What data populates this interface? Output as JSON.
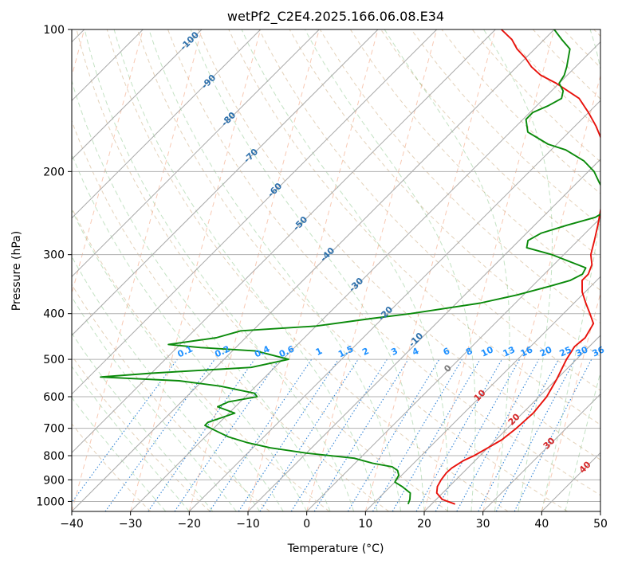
{
  "chart_data": {
    "type": "line",
    "title": "wetPf2_C2E4.2025.166.06.08.E34",
    "xlabel": "Temperature (°C)",
    "ylabel": "Pressure (hPa)",
    "xlim": [
      -40,
      50
    ],
    "ylim": [
      1050,
      100
    ],
    "y_scale": "log",
    "x_ticks": [
      -40,
      -30,
      -20,
      -10,
      0,
      10,
      20,
      30,
      40,
      50
    ],
    "y_ticks": [
      100,
      200,
      300,
      400,
      500,
      600,
      700,
      800,
      900,
      1000
    ],
    "skew": true,
    "grid": true,
    "series": [
      {
        "color": "#e8120c",
        "points": [
          [
            1013,
            24
          ],
          [
            990,
            21
          ],
          [
            960,
            19
          ],
          [
            930,
            18
          ],
          [
            900,
            17.5
          ],
          [
            870,
            17.2
          ],
          [
            850,
            17.3
          ],
          [
            820,
            18
          ],
          [
            800,
            19
          ],
          [
            770,
            20
          ],
          [
            740,
            21
          ],
          [
            700,
            21.5
          ],
          [
            650,
            21.8
          ],
          [
            600,
            21.3
          ],
          [
            550,
            20
          ],
          [
            500,
            18.3
          ],
          [
            470,
            17.5
          ],
          [
            450,
            17.8
          ],
          [
            420,
            16.8
          ],
          [
            400,
            14.5
          ],
          [
            380,
            12
          ],
          [
            360,
            9.5
          ],
          [
            340,
            7.5
          ],
          [
            330,
            7.5
          ],
          [
            315,
            6.5
          ],
          [
            300,
            4.6
          ],
          [
            280,
            2.8
          ],
          [
            260,
            0.8
          ],
          [
            240,
            -1.5
          ],
          [
            230,
            -2.5
          ],
          [
            215,
            -5
          ],
          [
            200,
            -7.5
          ],
          [
            190,
            -9.5
          ],
          [
            180,
            -11.5
          ],
          [
            170,
            -13.5
          ],
          [
            160,
            -16.5
          ],
          [
            150,
            -20
          ],
          [
            140,
            -24
          ],
          [
            130,
            -30.5
          ],
          [
            125,
            -34.5
          ],
          [
            120,
            -37.5
          ],
          [
            115,
            -40
          ],
          [
            110,
            -43
          ],
          [
            105,
            -45.5
          ],
          [
            100,
            -49
          ]
        ]
      },
      {
        "color": "#0a8a0a",
        "points": [
          [
            1013,
            16
          ],
          [
            990,
            15.5
          ],
          [
            960,
            14.5
          ],
          [
            930,
            12
          ],
          [
            910,
            10
          ],
          [
            880,
            9.5
          ],
          [
            860,
            8.5
          ],
          [
            845,
            7
          ],
          [
            830,
            3
          ],
          [
            810,
            -1
          ],
          [
            790,
            -10
          ],
          [
            770,
            -17
          ],
          [
            750,
            -22
          ],
          [
            730,
            -26
          ],
          [
            710,
            -29
          ],
          [
            690,
            -32
          ],
          [
            680,
            -32
          ],
          [
            670,
            -31
          ],
          [
            650,
            -29
          ],
          [
            630,
            -33
          ],
          [
            615,
            -32
          ],
          [
            600,
            -28
          ],
          [
            590,
            -29
          ],
          [
            570,
            -36
          ],
          [
            555,
            -44
          ],
          [
            545,
            -58
          ],
          [
            535,
            -50
          ],
          [
            520,
            -34
          ],
          [
            500,
            -29
          ],
          [
            480,
            -36
          ],
          [
            472,
            -46
          ],
          [
            465,
            -52
          ],
          [
            450,
            -45
          ],
          [
            435,
            -42
          ],
          [
            425,
            -30
          ],
          [
            410,
            -22
          ],
          [
            400,
            -16
          ],
          [
            380,
            -6
          ],
          [
            365,
            -1
          ],
          [
            350,
            3
          ],
          [
            340,
            5.5
          ],
          [
            330,
            6.5
          ],
          [
            320,
            6
          ],
          [
            300,
            -2
          ],
          [
            290,
            -7.5
          ],
          [
            280,
            -8.5
          ],
          [
            270,
            -7.5
          ],
          [
            260,
            -4.5
          ],
          [
            250,
            -1
          ],
          [
            240,
            0
          ],
          [
            230,
            -1.5
          ],
          [
            220,
            -4
          ],
          [
            210,
            -6.5
          ],
          [
            200,
            -9
          ],
          [
            190,
            -12.5
          ],
          [
            180,
            -17.5
          ],
          [
            175,
            -21.5
          ],
          [
            165,
            -27
          ],
          [
            155,
            -29.5
          ],
          [
            150,
            -29.5
          ],
          [
            145,
            -28
          ],
          [
            140,
            -27
          ],
          [
            135,
            -28
          ],
          [
            130,
            -30
          ],
          [
            125,
            -30.5
          ],
          [
            120,
            -31.5
          ],
          [
            110,
            -34
          ],
          [
            105,
            -37
          ],
          [
            100,
            -40
          ]
        ]
      }
    ],
    "dry_adiabat_labels": [
      "-100",
      "-90",
      "-80",
      "-70",
      "-60",
      "-50",
      "-40",
      "-30",
      "-20",
      "-10",
      "0",
      "10",
      "20",
      "30",
      "40"
    ],
    "mixing_ratio_labels": [
      "0.1",
      "0.2",
      "0.4",
      "0.6",
      "1",
      "1.5",
      "2",
      "3",
      "4",
      "6",
      "8",
      "10",
      "13",
      "16",
      "20",
      "25",
      "30",
      "36"
    ]
  }
}
